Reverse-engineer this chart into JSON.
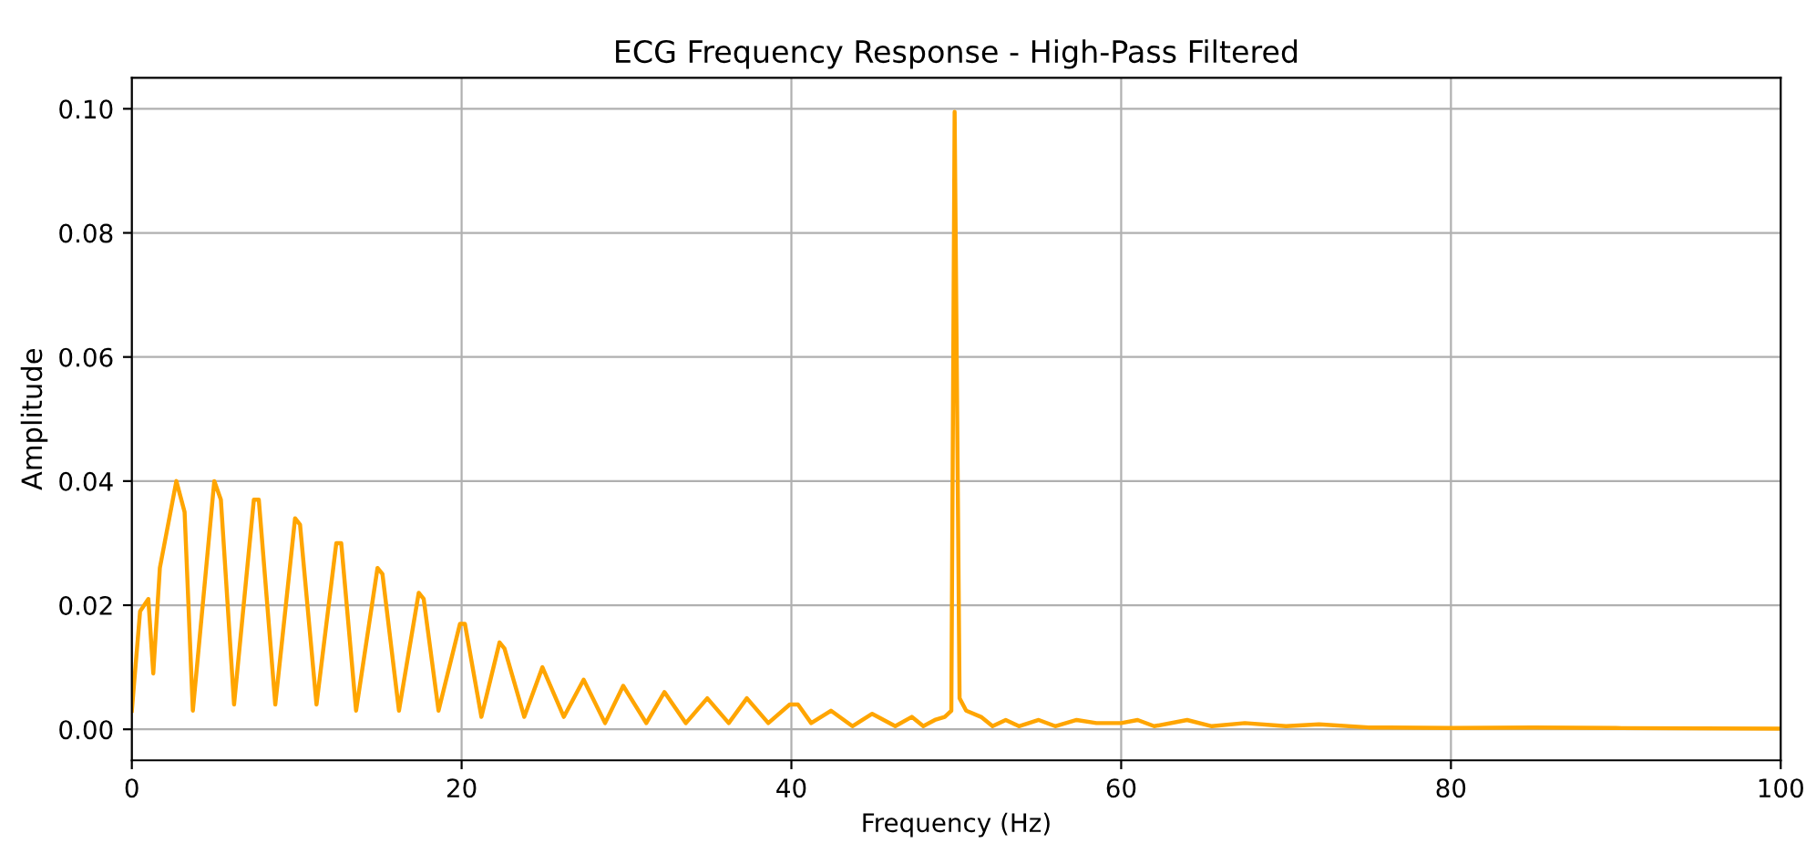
{
  "chart_data": {
    "type": "line",
    "title": "ECG Frequency Response - High-Pass Filtered",
    "xlabel": "Frequency (Hz)",
    "ylabel": "Amplitude",
    "xlim": [
      0,
      100
    ],
    "xticks": [
      0,
      20,
      40,
      60,
      80,
      100
    ],
    "ylim": [
      -0.005,
      0.105
    ],
    "yticks": [
      {
        "value": 0,
        "label": "0.00"
      },
      {
        "value": 0.02,
        "label": "0.02"
      },
      {
        "value": 0.04,
        "label": "0.04"
      },
      {
        "value": 0.06,
        "label": "0.06"
      },
      {
        "value": 0.08,
        "label": "0.08"
      },
      {
        "value": 0.1,
        "label": "0.10"
      }
    ],
    "grid": true,
    "series": [
      {
        "color": "#ffa500",
        "x": [
          0,
          0.5,
          1.0,
          1.3,
          1.7,
          2.7,
          3.2,
          3.7,
          5.0,
          5.4,
          6.2,
          7.4,
          7.7,
          8.7,
          9.9,
          10.2,
          11.2,
          12.4,
          12.7,
          13.6,
          14.9,
          15.2,
          16.2,
          17.4,
          17.7,
          18.6,
          19.9,
          20.2,
          21.2,
          22.3,
          22.6,
          23.8,
          24.9,
          26.2,
          27.4,
          28.7,
          29.8,
          31.2,
          32.3,
          33.6,
          34.9,
          36.2,
          37.3,
          38.6,
          39.9,
          40.4,
          41.2,
          42.4,
          43.7,
          44.9,
          46.3,
          47.3,
          48.0,
          48.7,
          49.3,
          49.7,
          49.9,
          50.2,
          50.6,
          51.5,
          52.2,
          53.0,
          53.8,
          55.0,
          56.0,
          57.3,
          58.5,
          60,
          61,
          62,
          64,
          65.5,
          67.5,
          70,
          72,
          75,
          80,
          85,
          90,
          100
        ],
        "values": [
          0.003,
          0.019,
          0.021,
          0.009,
          0.026,
          0.04,
          0.035,
          0.003,
          0.04,
          0.037,
          0.004,
          0.037,
          0.037,
          0.004,
          0.034,
          0.033,
          0.004,
          0.03,
          0.03,
          0.003,
          0.026,
          0.025,
          0.003,
          0.022,
          0.021,
          0.003,
          0.017,
          0.017,
          0.002,
          0.014,
          0.013,
          0.002,
          0.01,
          0.002,
          0.008,
          0.001,
          0.007,
          0.001,
          0.006,
          0.001,
          0.005,
          0.001,
          0.005,
          0.001,
          0.004,
          0.004,
          0.001,
          0.003,
          0.0005,
          0.0025,
          0.0005,
          0.002,
          0.0005,
          0.0015,
          0.002,
          0.003,
          0.0995,
          0.005,
          0.003,
          0.002,
          0.0005,
          0.0015,
          0.0005,
          0.0015,
          0.0005,
          0.0015,
          0.001,
          0.001,
          0.0015,
          0.0005,
          0.0015,
          0.0005,
          0.001,
          0.0005,
          0.0008,
          0.0003,
          0.0002,
          0.0003,
          0.0002,
          0.0001
        ]
      }
    ]
  }
}
